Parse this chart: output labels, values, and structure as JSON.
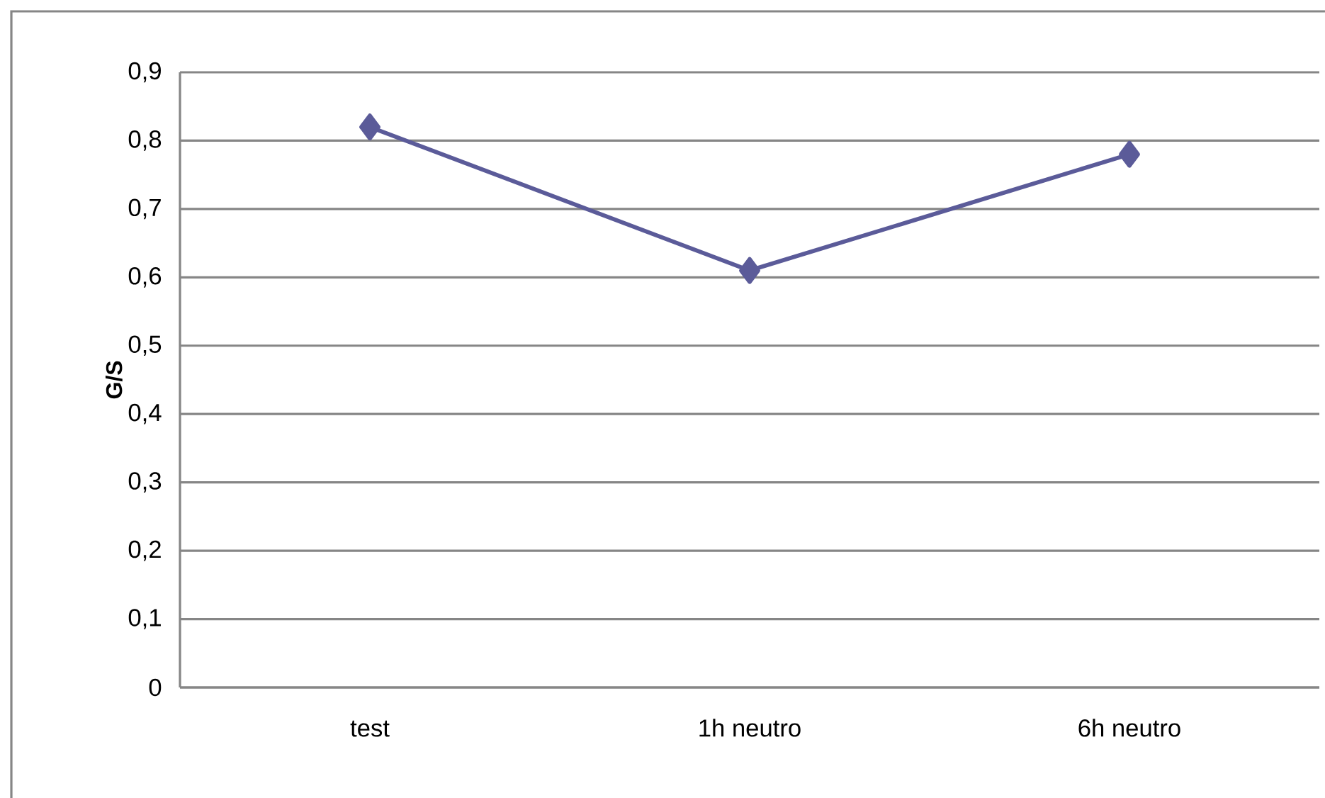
{
  "chart_data": {
    "type": "line",
    "ylabel": "G/S",
    "categories": [
      "test",
      "1h neutro",
      "6h neutro"
    ],
    "series": [
      {
        "color": "#5b5b99",
        "values": [
          0.82,
          0.61,
          0.78
        ]
      }
    ],
    "ylim": [
      0,
      0.9
    ],
    "yticks": [
      {
        "value": 0,
        "label": "0"
      },
      {
        "value": 0.1,
        "label": "0,1"
      },
      {
        "value": 0.2,
        "label": "0,2"
      },
      {
        "value": 0.3,
        "label": "0,3"
      },
      {
        "value": 0.4,
        "label": "0,4"
      },
      {
        "value": 0.5,
        "label": "0,5"
      },
      {
        "value": 0.6,
        "label": "0,6"
      },
      {
        "value": 0.7,
        "label": "0,7"
      },
      {
        "value": 0.8,
        "label": "0,8"
      },
      {
        "value": 0.9,
        "label": "0,9"
      }
    ],
    "grid": "y",
    "marker": "diamond",
    "line_style": "solid"
  }
}
